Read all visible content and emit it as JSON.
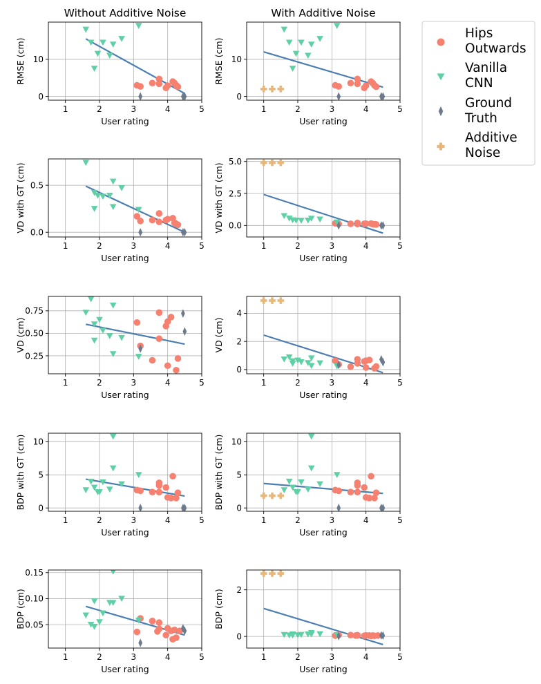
{
  "figure": {
    "col_titles": [
      "Without Additive Noise",
      "With Additive Noise"
    ],
    "legend": [
      {
        "name": "Hips Outwards",
        "lines": [
          "Hips",
          "Outwards"
        ],
        "color": "#F68170",
        "marker": "circle"
      },
      {
        "name": "Vanilla CNN",
        "lines": [
          "Vanilla",
          "CNN"
        ],
        "color": "#5FD0A6",
        "marker": "triangle-down"
      },
      {
        "name": "Ground Truth",
        "lines": [
          "Ground",
          "Truth"
        ],
        "color": "#6C7A8C",
        "marker": "thin-diamond"
      },
      {
        "name": "Additive Noise",
        "lines": [
          "Additive",
          "Noise"
        ],
        "color": "#E6B87C",
        "marker": "plus"
      }
    ],
    "line_color": "#4A7EB0"
  },
  "chart_data": [
    {
      "type": "scatter",
      "panel": "RMSE-no-noise",
      "title": "Without Additive Noise",
      "xlabel": "User rating",
      "ylabel": "RMSE (cm)",
      "xlim": [
        0.5,
        5
      ],
      "ylim": [
        -1,
        20
      ],
      "xticks": [
        1,
        2,
        3,
        4,
        5
      ],
      "yticks": [
        0,
        10
      ],
      "grid": true,
      "series": [
        {
          "name": "Hips Outwards",
          "x": [
            3.1,
            3.2,
            3.55,
            3.75,
            3.75,
            3.95,
            4.0,
            4.15,
            4.2,
            4.25,
            4.3
          ],
          "y": [
            3.0,
            2.7,
            3.6,
            3.4,
            4.7,
            2.3,
            2.9,
            4.0,
            3.6,
            3.0,
            2.6
          ]
        },
        {
          "name": "Vanilla CNN",
          "x": [
            1.6,
            1.75,
            1.85,
            1.95,
            2.1,
            2.3,
            2.4,
            2.65,
            3.15
          ],
          "y": [
            18.0,
            14.5,
            7.5,
            11.5,
            14.5,
            11.0,
            14.0,
            15.5,
            19.0
          ]
        },
        {
          "name": "Ground Truth",
          "x": [
            3.2,
            4.45,
            4.5
          ],
          "y": [
            0.0,
            0.0,
            0.0
          ]
        }
      ],
      "fit": {
        "x": [
          1.6,
          4.5
        ],
        "y": [
          15.5,
          0.8
        ]
      }
    },
    {
      "type": "scatter",
      "panel": "RMSE-noise",
      "title": "With Additive Noise",
      "xlabel": "User rating",
      "ylabel": "RMSE (cm)",
      "xlim": [
        0.5,
        5
      ],
      "ylim": [
        -1,
        20
      ],
      "xticks": [
        1,
        2,
        3,
        4,
        5
      ],
      "yticks": [
        0,
        10
      ],
      "grid": true,
      "series": [
        {
          "name": "Hips Outwards",
          "x": [
            3.1,
            3.2,
            3.55,
            3.75,
            3.75,
            3.95,
            4.0,
            4.15,
            4.2,
            4.25,
            4.3
          ],
          "y": [
            3.0,
            2.7,
            3.6,
            3.4,
            4.7,
            2.3,
            2.9,
            4.0,
            3.6,
            3.0,
            2.6
          ]
        },
        {
          "name": "Vanilla CNN",
          "x": [
            1.6,
            1.75,
            1.85,
            1.95,
            2.1,
            2.3,
            2.4,
            2.65,
            3.15
          ],
          "y": [
            18.0,
            14.5,
            7.5,
            11.5,
            14.5,
            11.0,
            14.0,
            15.5,
            19.0
          ]
        },
        {
          "name": "Ground Truth",
          "x": [
            3.2,
            4.45,
            4.5
          ],
          "y": [
            0.0,
            0.0,
            0.0
          ]
        },
        {
          "name": "Additive Noise",
          "x": [
            1.0,
            1.25,
            1.5
          ],
          "y": [
            2.0,
            2.0,
            2.0
          ]
        }
      ],
      "fit": {
        "x": [
          1.0,
          4.5
        ],
        "y": [
          12.0,
          2.5
        ]
      }
    },
    {
      "type": "scatter",
      "panel": "VDGT-no-noise",
      "xlabel": "User rating",
      "ylabel": "VD with GT (cm)",
      "xlim": [
        0.5,
        5
      ],
      "ylim": [
        -0.05,
        0.78
      ],
      "xticks": [
        1,
        2,
        3,
        4,
        5
      ],
      "yticks": [
        0.0,
        0.5
      ],
      "ytick_labels": [
        "0.0",
        "0.5"
      ],
      "grid": true,
      "series": [
        {
          "name": "Hips Outwards",
          "x": [
            3.1,
            3.2,
            3.55,
            3.75,
            3.75,
            3.95,
            4.0,
            4.15,
            4.2,
            4.25,
            4.3
          ],
          "y": [
            0.17,
            0.12,
            0.13,
            0.11,
            0.2,
            0.13,
            0.14,
            0.15,
            0.1,
            0.09,
            0.08
          ]
        },
        {
          "name": "Vanilla CNN",
          "x": [
            1.6,
            1.85,
            1.85,
            1.95,
            2.1,
            2.3,
            2.4,
            2.4,
            2.65,
            3.15
          ],
          "y": [
            0.74,
            0.42,
            0.25,
            0.39,
            0.38,
            0.39,
            0.54,
            0.27,
            0.47,
            0.24
          ]
        },
        {
          "name": "Ground Truth",
          "x": [
            3.2,
            4.45,
            4.5
          ],
          "y": [
            0.0,
            0.0,
            0.0
          ]
        }
      ],
      "fit": {
        "x": [
          1.6,
          4.5
        ],
        "y": [
          0.49,
          0.0
        ]
      }
    },
    {
      "type": "scatter",
      "panel": "VDGT-noise",
      "xlabel": "User rating",
      "ylabel": "VD with GT (cm)",
      "xlim": [
        0.5,
        5
      ],
      "ylim": [
        -0.9,
        5.2
      ],
      "xticks": [
        1,
        2,
        3,
        4,
        5
      ],
      "yticks": [
        0.0,
        2.5,
        5.0
      ],
      "ytick_labels": [
        "0.0",
        "2.5",
        "5.0"
      ],
      "grid": true,
      "series": [
        {
          "name": "Hips Outwards",
          "x": [
            3.1,
            3.2,
            3.55,
            3.75,
            3.75,
            3.95,
            4.0,
            4.15,
            4.2,
            4.25,
            4.3
          ],
          "y": [
            0.17,
            0.12,
            0.13,
            0.11,
            0.2,
            0.13,
            0.14,
            0.15,
            0.1,
            0.09,
            0.08
          ]
        },
        {
          "name": "Vanilla CNN",
          "x": [
            1.6,
            1.75,
            1.85,
            1.95,
            2.1,
            2.3,
            2.4,
            2.65,
            3.15
          ],
          "y": [
            0.74,
            0.55,
            0.42,
            0.39,
            0.38,
            0.39,
            0.54,
            0.47,
            0.24
          ]
        },
        {
          "name": "Ground Truth",
          "x": [
            3.2,
            4.45,
            4.5
          ],
          "y": [
            0.0,
            0.0,
            0.0
          ]
        },
        {
          "name": "Additive Noise",
          "x": [
            1.0,
            1.25,
            1.5
          ],
          "y": [
            4.9,
            4.9,
            4.9
          ]
        }
      ],
      "fit": {
        "x": [
          1.0,
          4.5
        ],
        "y": [
          2.42,
          -0.6
        ]
      }
    },
    {
      "type": "scatter",
      "panel": "VD-no-noise",
      "xlabel": "User rating",
      "ylabel": "VD (cm)",
      "xlim": [
        0.5,
        5
      ],
      "ylim": [
        0.05,
        0.91
      ],
      "xticks": [
        1,
        2,
        3,
        4,
        5
      ],
      "yticks": [
        0.25,
        0.5,
        0.75
      ],
      "ytick_labels": [
        "0.25",
        "0.50",
        "0.75"
      ],
      "grid": true,
      "series": [
        {
          "name": "Hips Outwards",
          "x": [
            3.1,
            3.2,
            3.55,
            3.75,
            3.75,
            3.95,
            4.0,
            4.0,
            4.1,
            4.25,
            4.3
          ],
          "y": [
            0.62,
            0.36,
            0.2,
            0.44,
            0.73,
            0.58,
            0.63,
            0.14,
            0.68,
            0.09,
            0.22
          ]
        },
        {
          "name": "Vanilla CNN",
          "x": [
            1.6,
            1.75,
            1.85,
            1.85,
            2.0,
            2.1,
            2.3,
            2.4,
            2.4,
            2.65,
            3.15
          ],
          "y": [
            0.73,
            0.88,
            0.42,
            0.6,
            0.65,
            0.53,
            0.47,
            0.27,
            0.81,
            0.45,
            0.24
          ]
        },
        {
          "name": "Ground Truth",
          "x": [
            3.2,
            4.45,
            4.5
          ],
          "y": [
            0.33,
            0.72,
            0.52
          ]
        }
      ],
      "fit": {
        "x": [
          1.6,
          4.5
        ],
        "y": [
          0.6,
          0.38
        ]
      }
    },
    {
      "type": "scatter",
      "panel": "VD-noise",
      "xlabel": "User rating",
      "ylabel": "VD (cm)",
      "xlim": [
        0.5,
        5
      ],
      "ylim": [
        -0.3,
        5.2
      ],
      "xticks": [
        1,
        2,
        3,
        4,
        5
      ],
      "yticks": [
        0,
        2,
        4
      ],
      "grid": true,
      "series": [
        {
          "name": "Hips Outwards",
          "x": [
            3.1,
            3.2,
            3.55,
            3.75,
            3.75,
            3.95,
            4.0,
            4.0,
            4.1,
            4.25,
            4.3
          ],
          "y": [
            0.62,
            0.36,
            0.2,
            0.44,
            0.73,
            0.58,
            0.63,
            0.14,
            0.68,
            0.09,
            0.22
          ]
        },
        {
          "name": "Vanilla CNN",
          "x": [
            1.6,
            1.75,
            1.85,
            1.85,
            2.0,
            2.1,
            2.3,
            2.4,
            2.4,
            2.65,
            3.15
          ],
          "y": [
            0.73,
            0.88,
            0.42,
            0.6,
            0.65,
            0.53,
            0.47,
            0.27,
            0.81,
            0.45,
            0.24
          ]
        },
        {
          "name": "Ground Truth",
          "x": [
            3.2,
            4.45,
            4.5
          ],
          "y": [
            0.33,
            0.72,
            0.52
          ]
        },
        {
          "name": "Additive Noise",
          "x": [
            1.0,
            1.25,
            1.5
          ],
          "y": [
            4.9,
            4.9,
            4.9
          ]
        }
      ],
      "fit": {
        "x": [
          1.0,
          4.5
        ],
        "y": [
          2.45,
          -0.22
        ]
      }
    },
    {
      "type": "scatter",
      "panel": "BDPGT-no-noise",
      "xlabel": "User rating",
      "ylabel": "BDP with GT (cm)",
      "xlim": [
        0.5,
        5
      ],
      "ylim": [
        -0.5,
        11.3
      ],
      "xticks": [
        1,
        2,
        3,
        4,
        5
      ],
      "yticks": [
        0,
        5,
        10
      ],
      "grid": true,
      "series": [
        {
          "name": "Hips Outwards",
          "x": [
            3.1,
            3.2,
            3.55,
            3.75,
            3.75,
            3.75,
            3.95,
            4.0,
            4.1,
            4.15,
            4.25,
            4.3
          ],
          "y": [
            2.7,
            2.6,
            2.4,
            3.8,
            3.4,
            2.4,
            3.1,
            1.6,
            1.5,
            4.8,
            1.5,
            2.3
          ]
        },
        {
          "name": "Vanilla CNN",
          "x": [
            1.6,
            1.75,
            1.85,
            1.95,
            2.0,
            2.1,
            2.3,
            2.4,
            2.4,
            2.65,
            3.15
          ],
          "y": [
            2.7,
            4.0,
            3.1,
            2.4,
            2.4,
            3.9,
            2.8,
            10.8,
            6.0,
            3.6,
            5.0
          ]
        },
        {
          "name": "Ground Truth",
          "x": [
            3.2,
            4.45,
            4.5
          ],
          "y": [
            0.0,
            0.0,
            0.0
          ]
        }
      ],
      "fit": {
        "x": [
          1.6,
          4.5
        ],
        "y": [
          4.35,
          1.8
        ]
      }
    },
    {
      "type": "scatter",
      "panel": "BDPGT-noise",
      "xlabel": "User rating",
      "ylabel": "BDP with GT (cm)",
      "xlim": [
        0.5,
        5
      ],
      "ylim": [
        -0.5,
        11.3
      ],
      "xticks": [
        1,
        2,
        3,
        4,
        5
      ],
      "yticks": [
        0,
        5,
        10
      ],
      "grid": true,
      "series": [
        {
          "name": "Hips Outwards",
          "x": [
            3.1,
            3.2,
            3.55,
            3.75,
            3.75,
            3.75,
            3.95,
            4.0,
            4.1,
            4.15,
            4.25,
            4.3
          ],
          "y": [
            2.7,
            2.6,
            2.4,
            3.8,
            3.4,
            2.4,
            3.1,
            1.6,
            1.5,
            4.8,
            1.5,
            2.3
          ]
        },
        {
          "name": "Vanilla CNN",
          "x": [
            1.6,
            1.75,
            1.85,
            1.95,
            2.0,
            2.1,
            2.3,
            2.4,
            2.4,
            2.65,
            3.15
          ],
          "y": [
            2.7,
            4.0,
            3.1,
            2.4,
            2.4,
            3.9,
            2.8,
            10.8,
            6.0,
            3.6,
            5.0
          ]
        },
        {
          "name": "Ground Truth",
          "x": [
            3.2,
            4.45,
            4.5
          ],
          "y": [
            0.0,
            0.0,
            0.0
          ]
        },
        {
          "name": "Additive Noise",
          "x": [
            1.0,
            1.25,
            1.5
          ],
          "y": [
            1.85,
            1.85,
            1.85
          ]
        }
      ],
      "fit": {
        "x": [
          1.0,
          4.5
        ],
        "y": [
          3.7,
          2.2
        ]
      }
    },
    {
      "type": "scatter",
      "panel": "BDP-no-noise",
      "xlabel": "User rating",
      "ylabel": "BDP (cm)",
      "xlim": [
        0.5,
        5
      ],
      "ylim": [
        0.005,
        0.155
      ],
      "xticks": [
        1,
        2,
        3,
        4,
        5
      ],
      "yticks": [
        0.05,
        0.1,
        0.15
      ],
      "ytick_labels": [
        "0.05",
        "0.10",
        "0.15"
      ],
      "grid": true,
      "series": [
        {
          "name": "Hips Outwards",
          "x": [
            3.1,
            3.2,
            3.55,
            3.7,
            3.75,
            3.75,
            3.95,
            4.0,
            4.1,
            4.15,
            4.2,
            4.25,
            4.35
          ],
          "y": [
            0.036,
            0.062,
            0.057,
            0.037,
            0.042,
            0.054,
            0.03,
            0.043,
            0.038,
            0.022,
            0.04,
            0.025,
            0.038
          ]
        },
        {
          "name": "Vanilla CNN",
          "x": [
            1.6,
            1.75,
            1.85,
            1.85,
            2.0,
            2.1,
            2.3,
            2.4,
            2.4,
            2.65,
            3.15
          ],
          "y": [
            0.068,
            0.05,
            0.095,
            0.046,
            0.055,
            0.072,
            0.092,
            0.152,
            0.092,
            0.1,
            0.058
          ]
        },
        {
          "name": "Ground Truth",
          "x": [
            3.2,
            4.45,
            4.5
          ],
          "y": [
            0.015,
            0.043,
            0.038
          ]
        }
      ],
      "fit": {
        "x": [
          1.6,
          4.5
        ],
        "y": [
          0.085,
          0.03
        ]
      }
    },
    {
      "type": "scatter",
      "panel": "BDP-noise",
      "xlabel": "User rating",
      "ylabel": "BDP (cm)",
      "xlim": [
        0.5,
        5
      ],
      "ylim": [
        -0.5,
        2.85
      ],
      "xticks": [
        1,
        2,
        3,
        4,
        5
      ],
      "yticks": [
        0,
        2
      ],
      "grid": true,
      "series": [
        {
          "name": "Hips Outwards",
          "x": [
            3.1,
            3.2,
            3.55,
            3.7,
            3.75,
            3.75,
            3.95,
            4.0,
            4.1,
            4.15,
            4.2,
            4.25,
            4.35
          ],
          "y": [
            0.036,
            0.062,
            0.057,
            0.037,
            0.042,
            0.054,
            0.03,
            0.043,
            0.038,
            0.022,
            0.04,
            0.025,
            0.038
          ]
        },
        {
          "name": "Vanilla CNN",
          "x": [
            1.6,
            1.75,
            1.85,
            1.85,
            2.0,
            2.1,
            2.3,
            2.4,
            2.4,
            2.65,
            3.15
          ],
          "y": [
            0.068,
            0.05,
            0.095,
            0.046,
            0.055,
            0.072,
            0.092,
            0.152,
            0.092,
            0.1,
            0.058
          ]
        },
        {
          "name": "Ground Truth",
          "x": [
            3.2,
            4.45,
            4.5
          ],
          "y": [
            0.015,
            0.043,
            0.038
          ]
        },
        {
          "name": "Additive Noise",
          "x": [
            1.0,
            1.25,
            1.5
          ],
          "y": [
            2.7,
            2.7,
            2.7
          ]
        }
      ],
      "fit": {
        "x": [
          1.0,
          4.5
        ],
        "y": [
          1.2,
          -0.35
        ]
      }
    }
  ]
}
